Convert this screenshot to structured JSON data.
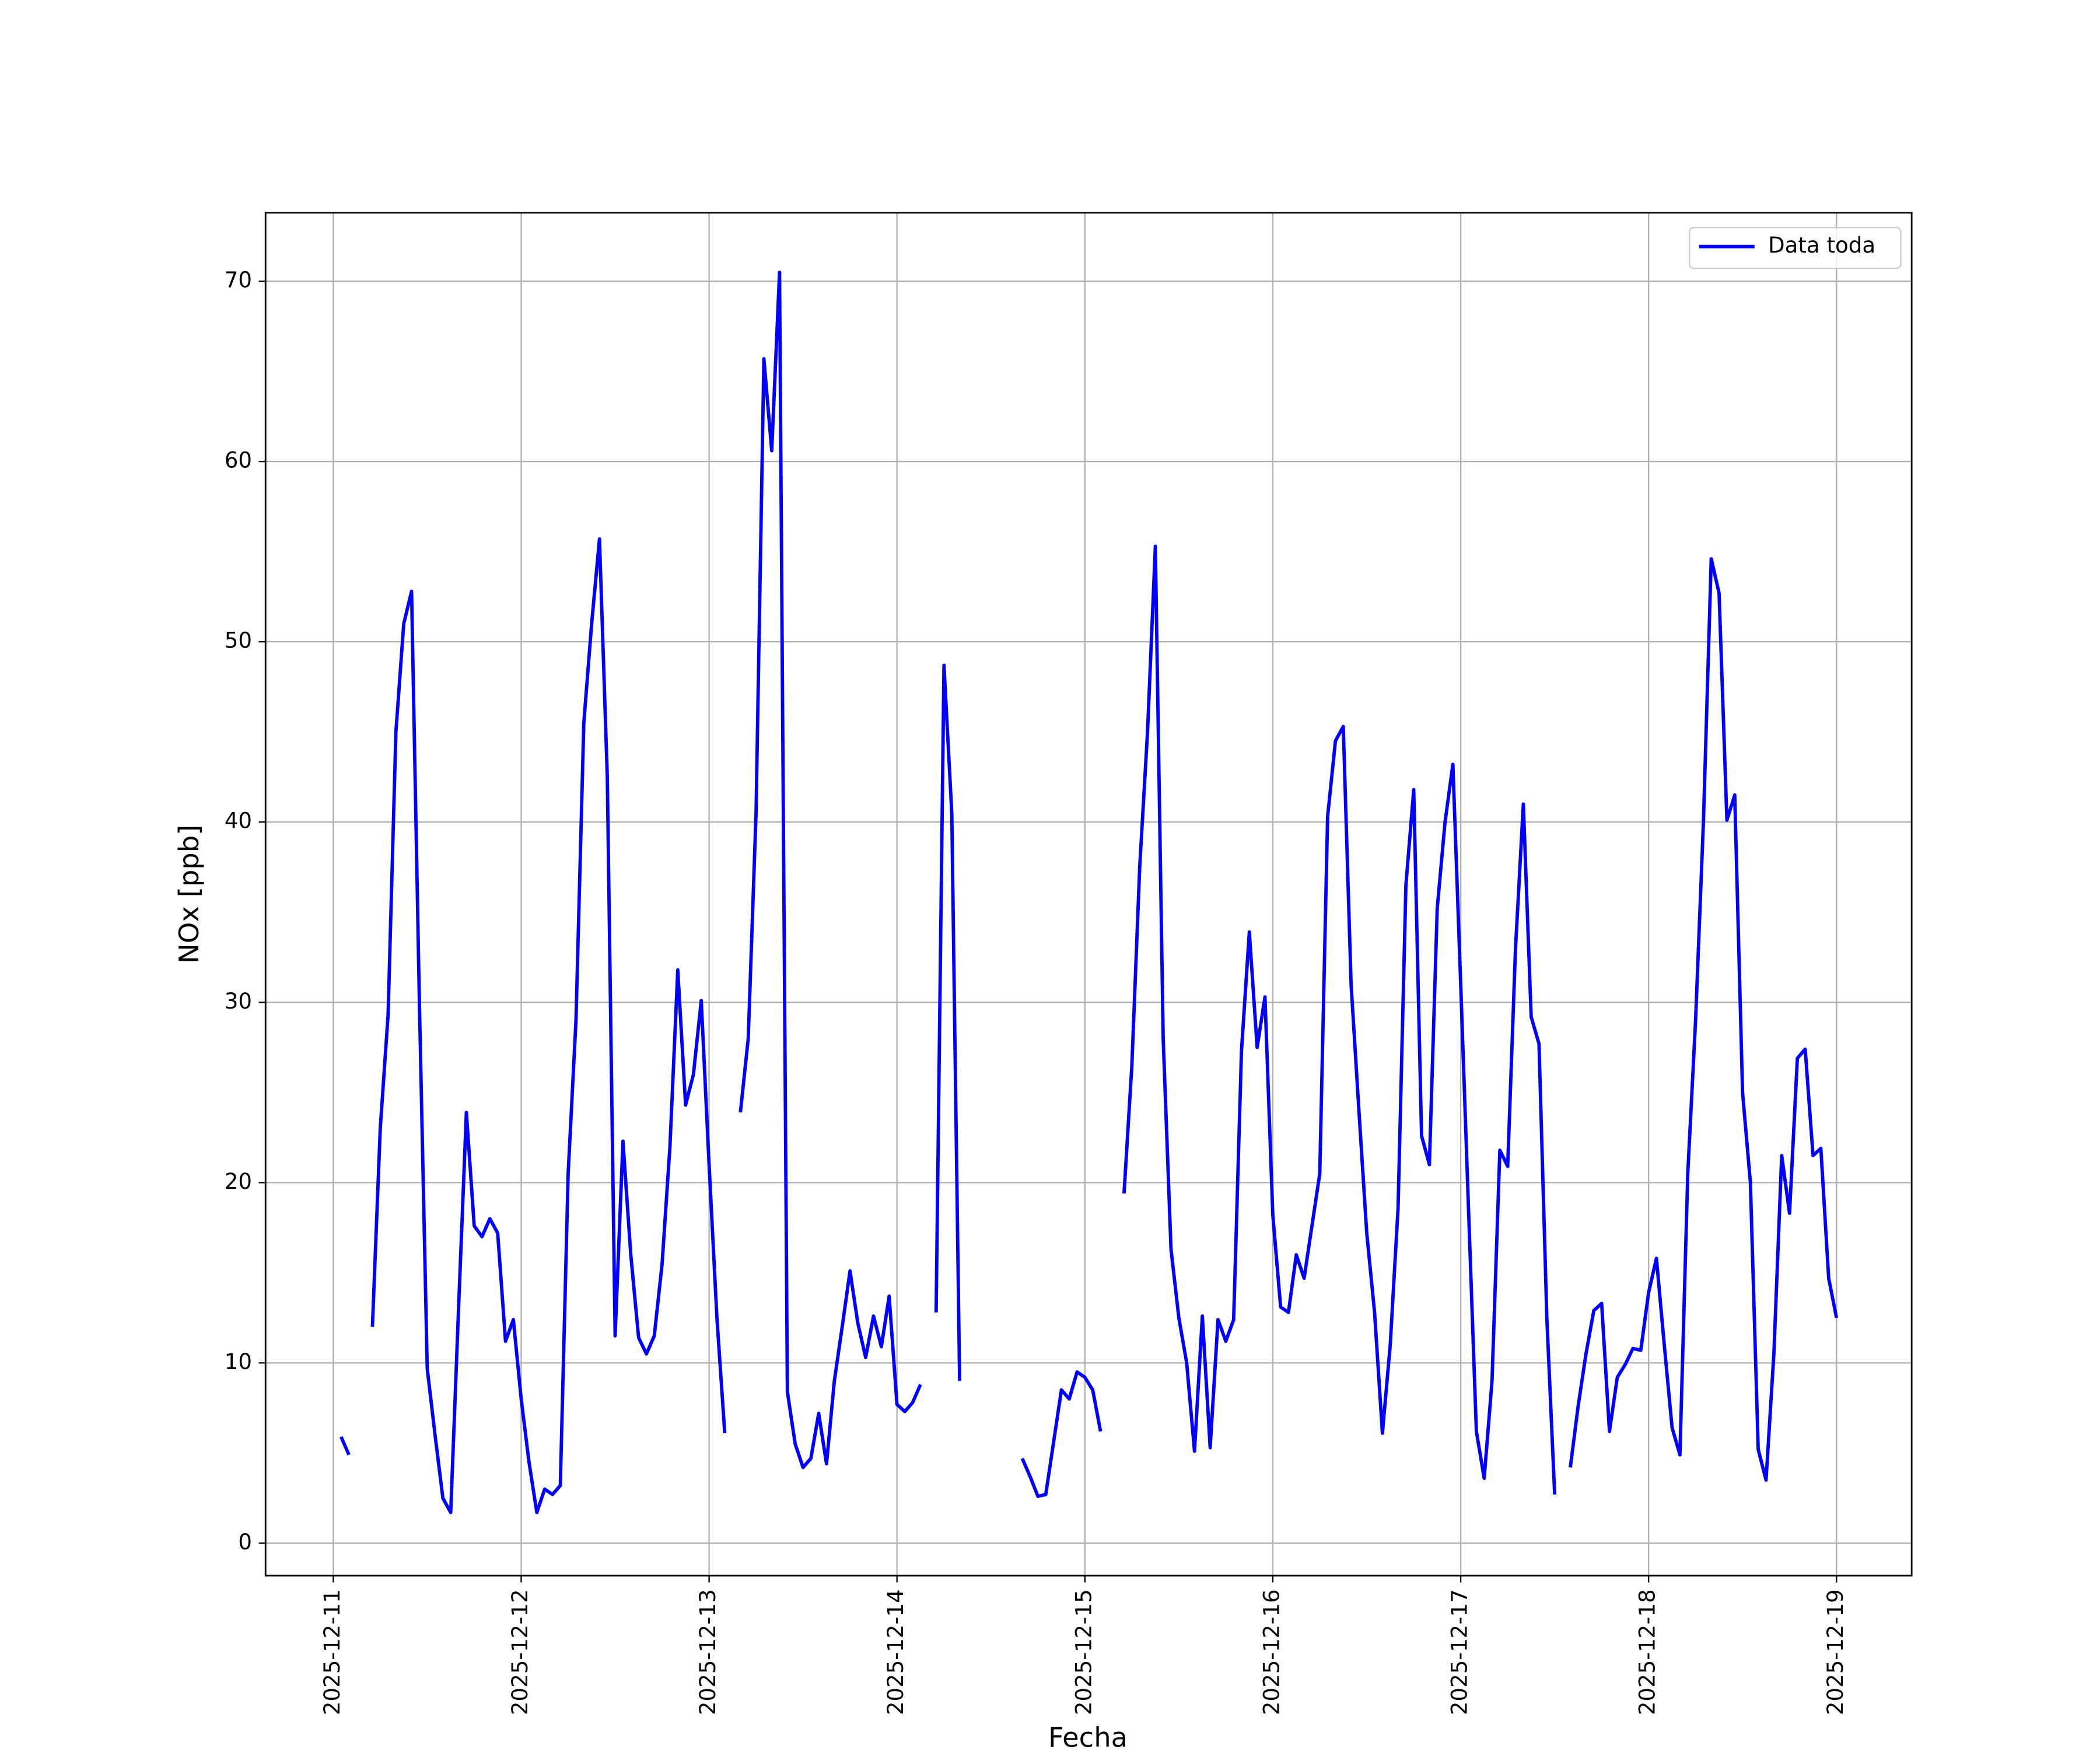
{
  "chart_data": {
    "type": "line",
    "xlabel": "Fecha",
    "ylabel": "NOx [ppb]",
    "xlim": [
      "2025-12-10 15:21",
      "2025-12-19 09:36"
    ],
    "xticks": [
      "2025-12-11",
      "2025-12-12",
      "2025-12-13",
      "2025-12-14",
      "2025-12-15",
      "2025-12-16",
      "2025-12-17",
      "2025-12-18",
      "2025-12-19"
    ],
    "ylim": [
      -1.8,
      73.8
    ],
    "yticks": [
      0,
      10,
      20,
      30,
      40,
      50,
      60,
      70
    ],
    "grid": true,
    "legend": "upper right",
    "x": [
      "2025-12-11 01:00",
      "2025-12-11 02:00",
      "2025-12-11 03:00",
      "2025-12-11 04:00",
      "2025-12-11 05:00",
      "2025-12-11 06:00",
      "2025-12-11 07:00",
      "2025-12-11 08:00",
      "2025-12-11 09:00",
      "2025-12-11 10:00",
      "2025-12-11 11:00",
      "2025-12-11 12:00",
      "2025-12-11 13:00",
      "2025-12-11 14:00",
      "2025-12-11 15:00",
      "2025-12-11 16:00",
      "2025-12-11 17:00",
      "2025-12-11 18:00",
      "2025-12-11 19:00",
      "2025-12-11 20:00",
      "2025-12-11 21:00",
      "2025-12-11 22:00",
      "2025-12-11 23:00",
      "2025-12-12 00:00",
      "2025-12-12 01:00",
      "2025-12-12 02:00",
      "2025-12-12 03:00",
      "2025-12-12 04:00",
      "2025-12-12 05:00",
      "2025-12-12 06:00",
      "2025-12-12 07:00",
      "2025-12-12 08:00",
      "2025-12-12 09:00",
      "2025-12-12 10:00",
      "2025-12-12 11:00",
      "2025-12-12 12:00",
      "2025-12-12 13:00",
      "2025-12-12 14:00",
      "2025-12-12 15:00",
      "2025-12-12 16:00",
      "2025-12-12 17:00",
      "2025-12-12 18:00",
      "2025-12-12 19:00",
      "2025-12-12 20:00",
      "2025-12-12 21:00",
      "2025-12-12 22:00",
      "2025-12-12 23:00",
      "2025-12-13 00:00",
      "2025-12-13 01:00",
      "2025-12-13 02:00",
      "2025-12-13 03:00",
      "2025-12-13 04:00",
      "2025-12-13 05:00",
      "2025-12-13 06:00",
      "2025-12-13 07:00",
      "2025-12-13 08:00",
      "2025-12-13 09:00",
      "2025-12-13 10:00",
      "2025-12-13 11:00",
      "2025-12-13 12:00",
      "2025-12-13 13:00",
      "2025-12-13 14:00",
      "2025-12-13 15:00",
      "2025-12-13 16:00",
      "2025-12-13 17:00",
      "2025-12-13 18:00",
      "2025-12-13 19:00",
      "2025-12-13 20:00",
      "2025-12-13 21:00",
      "2025-12-13 22:00",
      "2025-12-13 23:00",
      "2025-12-14 00:00",
      "2025-12-14 01:00",
      "2025-12-14 02:00",
      "2025-12-14 03:00",
      "2025-12-14 04:00",
      "2025-12-14 05:00",
      "2025-12-14 06:00",
      "2025-12-14 07:00",
      "2025-12-14 08:00",
      "2025-12-14 09:00",
      "2025-12-14 10:00",
      "2025-12-14 11:00",
      "2025-12-14 12:00",
      "2025-12-14 13:00",
      "2025-12-14 14:00",
      "2025-12-14 15:00",
      "2025-12-14 16:00",
      "2025-12-14 17:00",
      "2025-12-14 18:00",
      "2025-12-14 19:00",
      "2025-12-14 20:00",
      "2025-12-14 21:00",
      "2025-12-14 22:00",
      "2025-12-14 23:00",
      "2025-12-15 00:00",
      "2025-12-15 01:00",
      "2025-12-15 02:00",
      "2025-12-15 03:00",
      "2025-12-15 04:00",
      "2025-12-15 05:00",
      "2025-12-15 06:00",
      "2025-12-15 07:00",
      "2025-12-15 08:00",
      "2025-12-15 09:00",
      "2025-12-15 10:00",
      "2025-12-15 11:00",
      "2025-12-15 12:00",
      "2025-12-15 13:00",
      "2025-12-15 14:00",
      "2025-12-15 15:00",
      "2025-12-15 16:00",
      "2025-12-15 17:00",
      "2025-12-15 18:00",
      "2025-12-15 19:00",
      "2025-12-15 20:00",
      "2025-12-15 21:00",
      "2025-12-15 22:00",
      "2025-12-15 23:00",
      "2025-12-16 00:00",
      "2025-12-16 01:00",
      "2025-12-16 02:00",
      "2025-12-16 03:00",
      "2025-12-16 04:00",
      "2025-12-16 05:00",
      "2025-12-16 06:00",
      "2025-12-16 07:00",
      "2025-12-16 08:00",
      "2025-12-16 09:00",
      "2025-12-16 10:00",
      "2025-12-16 11:00",
      "2025-12-16 12:00",
      "2025-12-16 13:00",
      "2025-12-16 14:00",
      "2025-12-16 15:00",
      "2025-12-16 16:00",
      "2025-12-16 17:00",
      "2025-12-16 18:00",
      "2025-12-16 19:00",
      "2025-12-16 20:00",
      "2025-12-16 21:00",
      "2025-12-16 22:00",
      "2025-12-16 23:00",
      "2025-12-17 00:00",
      "2025-12-17 01:00",
      "2025-12-17 02:00",
      "2025-12-17 03:00",
      "2025-12-17 04:00",
      "2025-12-17 05:00",
      "2025-12-17 06:00",
      "2025-12-17 07:00",
      "2025-12-17 08:00",
      "2025-12-17 09:00",
      "2025-12-17 10:00",
      "2025-12-17 11:00",
      "2025-12-17 12:00",
      "2025-12-17 13:00",
      "2025-12-17 14:00",
      "2025-12-17 15:00",
      "2025-12-17 16:00",
      "2025-12-17 17:00",
      "2025-12-17 18:00",
      "2025-12-17 19:00",
      "2025-12-17 20:00",
      "2025-12-17 21:00",
      "2025-12-17 22:00",
      "2025-12-17 23:00",
      "2025-12-18 00:00",
      "2025-12-18 01:00",
      "2025-12-18 02:00",
      "2025-12-18 03:00",
      "2025-12-18 04:00",
      "2025-12-18 05:00",
      "2025-12-18 06:00",
      "2025-12-18 07:00",
      "2025-12-18 08:00",
      "2025-12-18 09:00",
      "2025-12-18 10:00",
      "2025-12-18 11:00",
      "2025-12-18 12:00",
      "2025-12-18 13:00",
      "2025-12-18 14:00",
      "2025-12-18 15:00",
      "2025-12-18 16:00",
      "2025-12-18 17:00",
      "2025-12-18 18:00",
      "2025-12-18 19:00",
      "2025-12-18 20:00",
      "2025-12-18 21:00",
      "2025-12-18 22:00",
      "2025-12-18 23:00",
      "2025-12-19 00:00"
    ],
    "series": [
      {
        "name": "Data toda",
        "color": "#0000ff",
        "values": [
          5.9,
          4.9,
          null,
          null,
          12.0,
          23,
          29.3,
          45,
          51,
          52.8,
          30,
          9.7,
          6,
          2.5,
          1.7,
          13,
          23.9,
          17.6,
          17,
          18,
          17.2,
          11.2,
          12.4,
          8,
          4.5,
          1.7,
          3,
          2.7,
          3.2,
          20.5,
          29,
          45.5,
          51,
          55.7,
          42.5,
          11.5,
          22.3,
          16,
          11.4,
          10.5,
          11.5,
          15.5,
          22,
          31.8,
          24.3,
          26,
          30.1,
          21,
          12.5,
          6.1,
          null,
          23.9,
          28,
          40.5,
          65.7,
          60.6,
          70.5,
          8.4,
          5.5,
          4.2,
          4.7,
          7.2,
          4.4,
          9,
          12,
          15.1,
          12.2,
          10.3,
          12.6,
          10.9,
          13.7,
          7.7,
          7.3,
          7.8,
          8.8,
          null,
          12.8,
          48.7,
          40.5,
          9.0,
          null,
          null,
          null,
          null,
          null,
          null,
          null,
          4.7,
          3.7,
          2.6,
          2.7,
          5.6,
          8.5,
          8,
          9.5,
          9.2,
          8.5,
          6.2,
          null,
          null,
          19.4,
          26.5,
          37.5,
          45,
          55.3,
          28,
          16.3,
          12.5,
          10,
          5.1,
          12.6,
          5.3,
          12.4,
          11.2,
          12.4,
          27.3,
          33.9,
          27.5,
          30.3,
          18.2,
          13.1,
          12.8,
          16,
          14.7,
          17.6,
          20.5,
          40.3,
          44.5,
          45.3,
          31,
          24,
          17.2,
          12.8,
          6.1,
          11,
          18.6,
          36.5,
          41.8,
          22.6,
          21,
          35.2,
          40,
          43.2,
          31,
          18.5,
          6.2,
          3.6,
          9,
          21.8,
          20.9,
          33,
          41,
          29.2,
          27.7,
          12.5,
          2.7,
          null,
          4.2,
          7.6,
          10.5,
          12.9,
          13.3,
          6.2,
          9.2,
          9.9,
          10.8,
          10.7,
          13.9,
          15.8,
          11,
          6.4,
          4.9,
          20.5,
          29,
          40,
          54.6,
          52.7,
          40.1,
          41.5,
          25,
          20,
          5.2,
          3.5,
          10.5,
          21.5,
          18.3,
          26.9,
          27.4,
          21.5,
          21.9,
          14.7,
          12.5
        ]
      }
    ]
  }
}
